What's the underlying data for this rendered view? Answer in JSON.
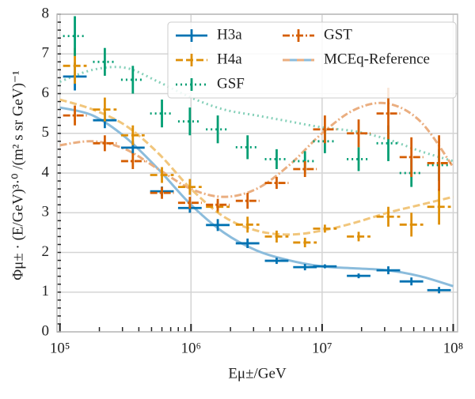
{
  "chart_data": {
    "type": "errorbar",
    "x_label": "Eμ±/GeV",
    "y_label": "Φμ± · (E/GeV)³·⁰ /(m² s sr GeV)⁻¹",
    "x_log": true,
    "grid": true,
    "legend_position": "upper right",
    "xlim": [
      95000,
      108000000
    ],
    "ylim": [
      0,
      8
    ],
    "xticks": [
      {
        "value": 100000,
        "label": "10⁵"
      },
      {
        "value": 1000000,
        "label": "10⁶"
      },
      {
        "value": 10000000,
        "label": "10⁷"
      },
      {
        "value": 100000000,
        "label": "10⁸"
      }
    ],
    "yticks": [
      0,
      1,
      2,
      3,
      4,
      5,
      6,
      7,
      8
    ],
    "x": [
      130000,
      220000,
      360000,
      600000,
      980000,
      1600000,
      2700000,
      4500000,
      7400000,
      10500000,
      19000000,
      32000000,
      48000000,
      78000000
    ],
    "series": [
      {
        "name": "H3a",
        "color": "#0072b2",
        "linestyle": "solid",
        "values": [
          6.43,
          5.33,
          4.64,
          3.54,
          3.12,
          2.69,
          2.23,
          1.79,
          1.63,
          1.65,
          1.41,
          1.55,
          1.27,
          1.05
        ],
        "errors": [
          0.35,
          0.2,
          0.15,
          0.12,
          0.12,
          0.15,
          0.12,
          0.08,
          0.08,
          0.05,
          0.06,
          0.1,
          0.1,
          0.08
        ]
      },
      {
        "name": "H4a",
        "color": "#de8f05",
        "linestyle": "dashed",
        "values": [
          6.7,
          5.6,
          4.95,
          3.95,
          3.65,
          3.15,
          2.7,
          2.4,
          2.25,
          2.6,
          2.4,
          2.9,
          2.7,
          3.15
        ],
        "errors": [
          0.45,
          0.3,
          0.25,
          0.2,
          0.2,
          0.15,
          0.2,
          0.15,
          0.12,
          0.1,
          0.12,
          0.25,
          0.3,
          0.45
        ]
      },
      {
        "name": "GSF",
        "color": "#029e73",
        "linestyle": "dotted",
        "values": [
          7.45,
          6.8,
          6.35,
          5.5,
          5.3,
          5.1,
          4.65,
          4.35,
          4.3,
          4.8,
          4.35,
          4.75,
          4.0,
          4.2
        ],
        "errors": [
          0.5,
          0.35,
          0.35,
          0.35,
          0.35,
          0.35,
          0.3,
          0.25,
          0.25,
          0.3,
          0.3,
          0.45,
          0.35,
          0.4
        ]
      },
      {
        "name": "GST",
        "color": "#d55e00",
        "linestyle": "dashdot",
        "values": [
          5.45,
          4.75,
          4.3,
          3.5,
          3.25,
          3.2,
          3.3,
          3.75,
          4.1,
          5.1,
          5.0,
          5.5,
          4.4,
          4.25
        ],
        "errors": [
          0.25,
          0.2,
          0.2,
          0.15,
          0.15,
          0.15,
          0.2,
          0.15,
          0.2,
          0.35,
          0.35,
          0.65,
          0.5,
          0.7
        ]
      }
    ],
    "reference": {
      "name": "MCEq-Reference",
      "x": [
        100000,
        178000,
        316000,
        562000,
        1000000,
        1780000,
        3160000,
        5620000,
        10000000,
        17800000,
        31600000,
        56200000,
        100000000
      ],
      "curves": [
        {
          "color": "#8bbcdc",
          "linestyle": "solid",
          "values": [
            5.65,
            5.45,
            4.9,
            4.1,
            3.2,
            2.5,
            2.05,
            1.8,
            1.65,
            1.6,
            1.55,
            1.4,
            1.15
          ]
        },
        {
          "color": "#f1c67c",
          "linestyle": "dashed",
          "values": [
            5.85,
            5.6,
            5.2,
            4.5,
            3.6,
            2.9,
            2.55,
            2.45,
            2.55,
            2.75,
            3.0,
            3.2,
            3.4
          ]
        },
        {
          "color": "#85d0b9",
          "linestyle": "dotted",
          "values": [
            6.3,
            6.6,
            6.65,
            6.3,
            5.9,
            5.6,
            5.45,
            5.3,
            5.15,
            5.05,
            4.85,
            4.55,
            4.3
          ]
        },
        {
          "color": "#eaae80",
          "linestyle": "dashdot",
          "values": [
            4.7,
            4.8,
            4.6,
            4.1,
            3.6,
            3.4,
            3.6,
            4.2,
            5.0,
            5.6,
            5.75,
            5.3,
            4.15
          ]
        }
      ]
    }
  }
}
